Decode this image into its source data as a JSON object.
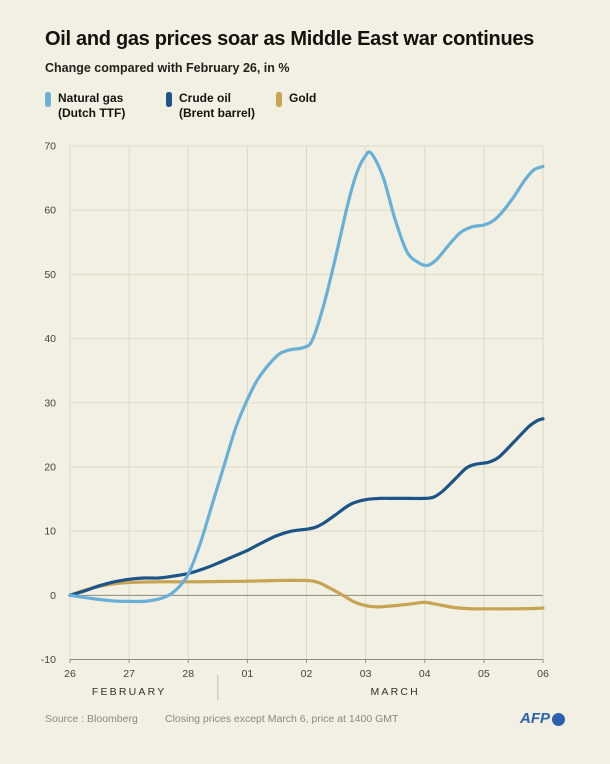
{
  "header": {
    "title": "Oil and gas prices soar as Middle East war continues",
    "subtitle": "Change compared with February 26, in %"
  },
  "legend": {
    "items": [
      {
        "label": "Natural gas",
        "sublabel": "(Dutch TTF)",
        "color": "#6ab2d6"
      },
      {
        "label": "Crude oil",
        "sublabel": "(Brent barrel)",
        "color": "#1c5488"
      },
      {
        "label": "Gold",
        "sublabel": "",
        "color": "#c7a352"
      }
    ]
  },
  "footer": {
    "source": "Source : Bloomberg",
    "note": "Closing prices except March 6, price at 1400 GMT",
    "logo_text": "AFP"
  },
  "chart_data": {
    "type": "line",
    "title": "Oil and gas prices soar as Middle East war continues",
    "subtitle": "Change compared with February 26, in %",
    "ylabel": "Change compared with February 26, in %",
    "xlabel": "",
    "grid": true,
    "legend_position": "top-left",
    "xlim": [
      0,
      8
    ],
    "ylim": [
      -10,
      70
    ],
    "y_ticks": [
      70,
      60,
      50,
      40,
      30,
      20,
      10,
      0,
      -10
    ],
    "x_ticks": [
      {
        "day": 0,
        "label": "26"
      },
      {
        "day": 1,
        "label": "27"
      },
      {
        "day": 2,
        "label": "28"
      },
      {
        "day": 3,
        "label": "01"
      },
      {
        "day": 4,
        "label": "02"
      },
      {
        "day": 5,
        "label": "03"
      },
      {
        "day": 6,
        "label": "04"
      },
      {
        "day": 7,
        "label": "05"
      },
      {
        "day": 8,
        "label": "06"
      }
    ],
    "months": [
      {
        "label": "FEBRUARY",
        "center_day": 1
      },
      {
        "label": "MARCH",
        "center_day": 5.5
      }
    ],
    "month_divider_day": 2.5,
    "grid_color": "#dcd9c6",
    "axis_color": "#8f8c7c",
    "label_color": "#45433a",
    "month_label_color": "#35332c",
    "divider_color": "#c2bfae",
    "series": [
      {
        "name": "Gold",
        "color": "#c7a352",
        "points": [
          [
            0,
            0
          ],
          [
            0.25,
            0.8
          ],
          [
            0.5,
            1.4
          ],
          [
            0.75,
            1.8
          ],
          [
            1,
            2
          ],
          [
            1.5,
            2.1
          ],
          [
            2,
            2.1
          ],
          [
            2.5,
            2.15
          ],
          [
            3,
            2.2
          ],
          [
            3.5,
            2.3
          ],
          [
            4,
            2.3
          ],
          [
            4.2,
            2
          ],
          [
            4.4,
            1.1
          ],
          [
            4.6,
            0.1
          ],
          [
            4.8,
            -1
          ],
          [
            5,
            -1.6
          ],
          [
            5.2,
            -1.8
          ],
          [
            5.5,
            -1.6
          ],
          [
            5.8,
            -1.3
          ],
          [
            6,
            -1.1
          ],
          [
            6.2,
            -1.4
          ],
          [
            6.5,
            -1.9
          ],
          [
            6.8,
            -2.1
          ],
          [
            7,
            -2.1
          ],
          [
            7.5,
            -2.1
          ],
          [
            8,
            -2
          ]
        ]
      },
      {
        "name": "Crude oil (Brent barrel)",
        "color": "#1c5488",
        "points": [
          [
            0,
            0
          ],
          [
            0.25,
            0.7
          ],
          [
            0.5,
            1.5
          ],
          [
            0.75,
            2.1
          ],
          [
            1,
            2.5
          ],
          [
            1.25,
            2.7
          ],
          [
            1.5,
            2.7
          ],
          [
            1.75,
            3
          ],
          [
            2,
            3.4
          ],
          [
            2.25,
            4.1
          ],
          [
            2.5,
            5
          ],
          [
            2.75,
            6
          ],
          [
            3,
            7
          ],
          [
            3.25,
            8.2
          ],
          [
            3.5,
            9.3
          ],
          [
            3.75,
            10
          ],
          [
            4,
            10.3
          ],
          [
            4.15,
            10.6
          ],
          [
            4.3,
            11.3
          ],
          [
            4.5,
            12.6
          ],
          [
            4.75,
            14.2
          ],
          [
            5,
            14.9
          ],
          [
            5.25,
            15.1
          ],
          [
            5.5,
            15.1
          ],
          [
            5.75,
            15.1
          ],
          [
            6,
            15.1
          ],
          [
            6.15,
            15.3
          ],
          [
            6.3,
            16.2
          ],
          [
            6.5,
            18
          ],
          [
            6.7,
            19.8
          ],
          [
            6.85,
            20.4
          ],
          [
            7,
            20.6
          ],
          [
            7.1,
            20.8
          ],
          [
            7.25,
            21.5
          ],
          [
            7.5,
            23.8
          ],
          [
            7.75,
            26.2
          ],
          [
            7.9,
            27.2
          ],
          [
            8,
            27.5
          ]
        ]
      },
      {
        "name": "Natural gas (Dutch TTF)",
        "color": "#68b0d7",
        "points": [
          [
            0,
            0
          ],
          [
            0.3,
            -0.4
          ],
          [
            0.7,
            -0.85
          ],
          [
            1,
            -0.95
          ],
          [
            1.3,
            -0.9
          ],
          [
            1.6,
            -0.3
          ],
          [
            1.8,
            0.9
          ],
          [
            2,
            3.3
          ],
          [
            2.2,
            8
          ],
          [
            2.4,
            14
          ],
          [
            2.6,
            20
          ],
          [
            2.8,
            26
          ],
          [
            3,
            30.5
          ],
          [
            3.2,
            34
          ],
          [
            3.5,
            37.3
          ],
          [
            3.7,
            38.2
          ],
          [
            3.95,
            38.6
          ],
          [
            4.1,
            39.8
          ],
          [
            4.3,
            45.5
          ],
          [
            4.5,
            53
          ],
          [
            4.7,
            61
          ],
          [
            4.85,
            65.8
          ],
          [
            5,
            68.5
          ],
          [
            5.1,
            68.8
          ],
          [
            5.3,
            65
          ],
          [
            5.5,
            58.5
          ],
          [
            5.7,
            53.5
          ],
          [
            5.9,
            51.8
          ],
          [
            6.05,
            51.4
          ],
          [
            6.2,
            52.3
          ],
          [
            6.4,
            54.5
          ],
          [
            6.6,
            56.5
          ],
          [
            6.8,
            57.4
          ],
          [
            7,
            57.7
          ],
          [
            7.15,
            58.3
          ],
          [
            7.3,
            59.6
          ],
          [
            7.5,
            62
          ],
          [
            7.7,
            64.8
          ],
          [
            7.85,
            66.3
          ],
          [
            8,
            66.8
          ]
        ]
      }
    ]
  }
}
